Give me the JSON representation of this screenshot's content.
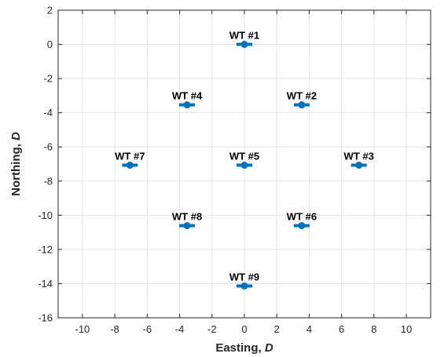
{
  "chart_data": {
    "type": "scatter",
    "title": "",
    "xlabel": {
      "text": "Easting, ",
      "italic": "D"
    },
    "ylabel": {
      "text": "Northing, ",
      "italic": "D"
    },
    "xlim": [
      -11.5,
      11.5
    ],
    "ylim": [
      -16,
      2
    ],
    "xticks": [
      -10,
      -8,
      -6,
      -4,
      -2,
      0,
      2,
      4,
      6,
      8,
      10
    ],
    "yticks": [
      2,
      0,
      -2,
      -4,
      -6,
      -8,
      -10,
      -12,
      -14,
      -16
    ],
    "grid": true,
    "marker_color": "#0072BD",
    "points": [
      {
        "label": "WT #1",
        "x": 0,
        "y": 0
      },
      {
        "label": "WT #2",
        "x": 3.54,
        "y": -3.54
      },
      {
        "label": "WT #3",
        "x": 7.07,
        "y": -7.07
      },
      {
        "label": "WT #4",
        "x": -3.54,
        "y": -3.54
      },
      {
        "label": "WT #5",
        "x": 0,
        "y": -7.07
      },
      {
        "label": "WT #6",
        "x": 3.54,
        "y": -10.61
      },
      {
        "label": "WT #7",
        "x": -7.07,
        "y": -7.07
      },
      {
        "label": "WT #8",
        "x": -3.54,
        "y": -10.61
      },
      {
        "label": "WT #9",
        "x": 0,
        "y": -14.14
      }
    ]
  }
}
